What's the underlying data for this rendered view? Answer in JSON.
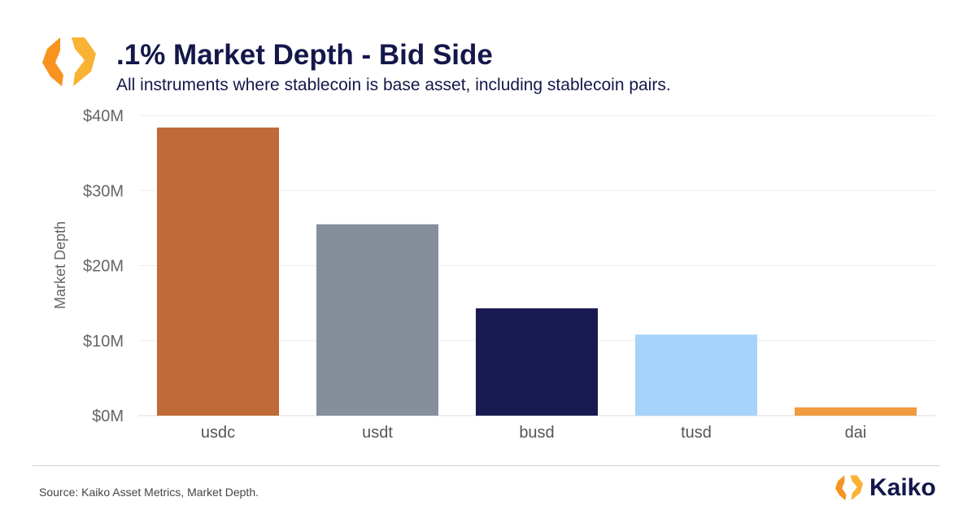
{
  "header": {
    "title": ".1% Market Depth - Bid Side",
    "subtitle": "All instruments where stablecoin is base asset, including stablecoin pairs."
  },
  "footer": {
    "source": "Source: Kaiko Asset Metrics, Market Depth.",
    "brand": "Kaiko"
  },
  "colors": {
    "logo_orange": "#f7931e",
    "logo_yellow": "#f9b233",
    "title": "#14174a"
  },
  "chart_data": {
    "type": "bar",
    "title": ".1% Market Depth - Bid Side",
    "subtitle": "All instruments where stablecoin is base asset, including stablecoin pairs.",
    "xlabel": "",
    "ylabel": "Market Depth",
    "categories": [
      "usdc",
      "usdt",
      "busd",
      "tusd",
      "dai"
    ],
    "values": [
      38.4,
      25.5,
      14.3,
      10.8,
      1.1
    ],
    "unit": "$M",
    "colors": [
      "#bf6a37",
      "#858f9b",
      "#1a1a52",
      "#a6d3fb",
      "#f19a3e"
    ],
    "ylim": [
      0,
      40
    ],
    "yticks": [
      0,
      10,
      20,
      30,
      40
    ],
    "ytick_labels": [
      "$0M",
      "$10M",
      "$20M",
      "$30M",
      "$40M"
    ],
    "grid": true
  }
}
